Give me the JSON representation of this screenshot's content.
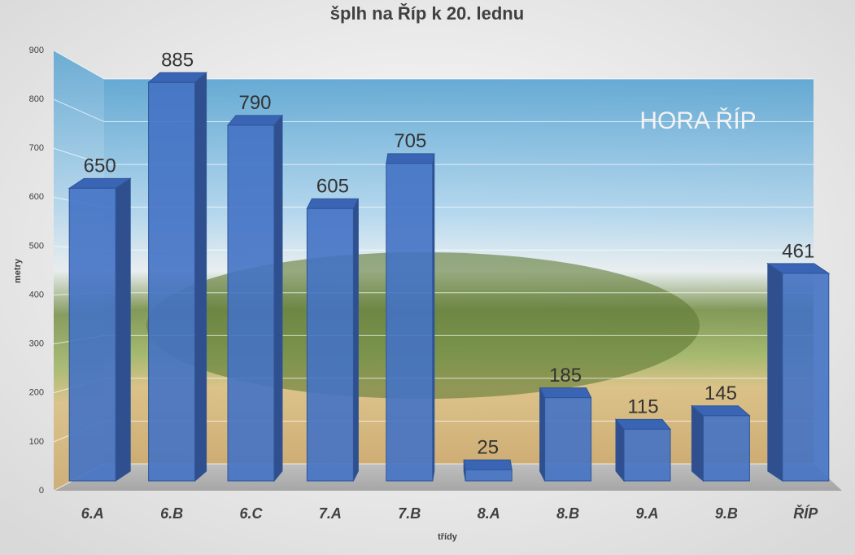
{
  "chart_data": {
    "type": "bar3d",
    "title": "šplh na Říp k 20. lednu",
    "x_label": "třídy",
    "y_label": "metry",
    "annotation": "HORA ŘÍP",
    "categories": [
      "6.A",
      "6.B",
      "6.C",
      "7.A",
      "7.B",
      "8.A",
      "8.B",
      "9.A",
      "9.B",
      "ŘÍP"
    ],
    "values": [
      650,
      885,
      790,
      605,
      705,
      25,
      185,
      115,
      145,
      461
    ],
    "color": "#4472c4",
    "ylim": [
      0,
      900
    ],
    "yticks": [
      0,
      100,
      200,
      300,
      400,
      500,
      600,
      700,
      800,
      900
    ],
    "grid": true
  }
}
